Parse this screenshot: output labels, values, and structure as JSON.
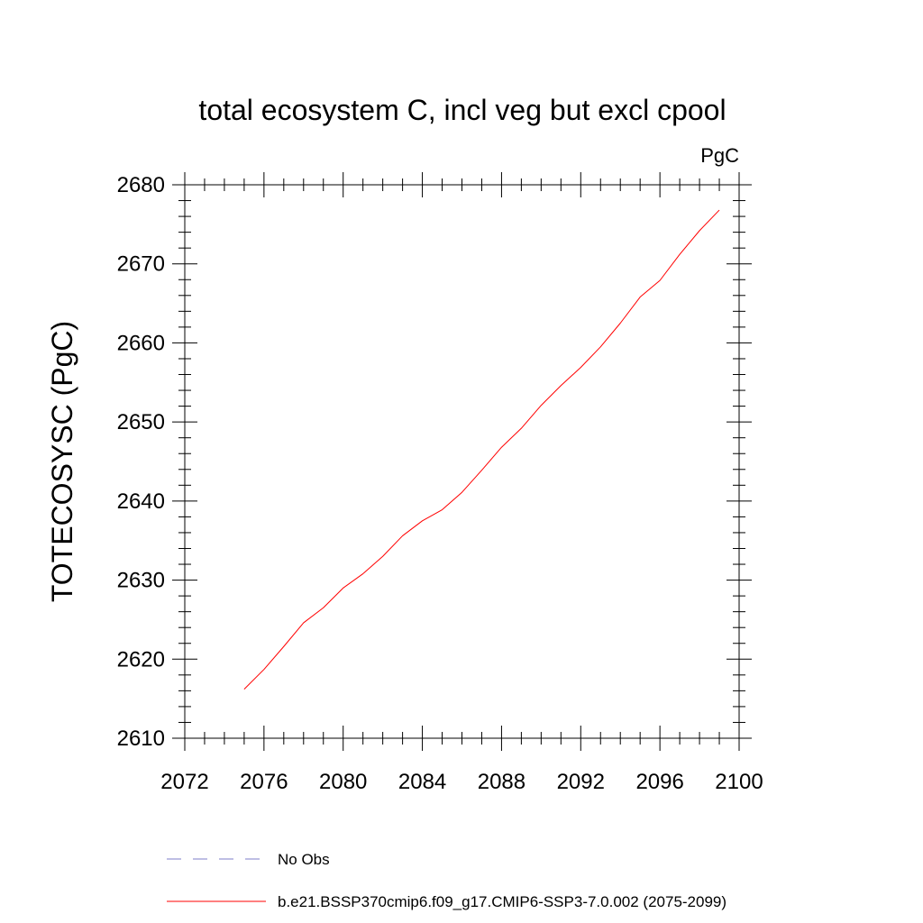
{
  "chart_data": {
    "type": "line",
    "title": "total ecosystem C, incl veg but excl cpool",
    "units_label": "PgC",
    "xlabel": "",
    "ylabel": "TOTECOSYSC  (PgC)",
    "xlim": [
      2072,
      2100
    ],
    "ylim": [
      2610,
      2680
    ],
    "x_ticks": [
      2072,
      2076,
      2080,
      2084,
      2088,
      2092,
      2096,
      2100
    ],
    "y_ticks": [
      2610,
      2620,
      2630,
      2640,
      2650,
      2660,
      2670,
      2680
    ],
    "x_minor_step": 1,
    "y_minor_step": 2,
    "grid": false,
    "legend_position": "bottom",
    "series": [
      {
        "name": "b.e21.BSSP370cmip6.f09_g17.CMIP6-SSP3-7.0.002 (2075-2099)",
        "color": "#ff0000",
        "dash": "solid",
        "x": [
          2075,
          2076,
          2077,
          2078,
          2079,
          2080,
          2081,
          2082,
          2083,
          2084,
          2085,
          2086,
          2087,
          2088,
          2089,
          2090,
          2091,
          2092,
          2093,
          2094,
          2095,
          2096,
          2097,
          2098,
          2099
        ],
        "y": [
          2616.2,
          2618.7,
          2621.6,
          2624.6,
          2626.5,
          2629.0,
          2630.8,
          2633.0,
          2635.6,
          2637.5,
          2638.9,
          2641.1,
          2643.9,
          2646.8,
          2649.2,
          2652.1,
          2654.6,
          2656.9,
          2659.5,
          2662.5,
          2665.8,
          2667.9,
          2671.2,
          2674.2,
          2676.8
        ]
      }
    ],
    "legend": [
      {
        "label": "No Obs",
        "color": "#7d7dc8",
        "dash": "dashed"
      },
      {
        "label": "b.e21.BSSP370cmip6.f09_g17.CMIP6-SSP3-7.0.002 (2075-2099)",
        "color": "#ff0000",
        "dash": "solid"
      }
    ]
  }
}
